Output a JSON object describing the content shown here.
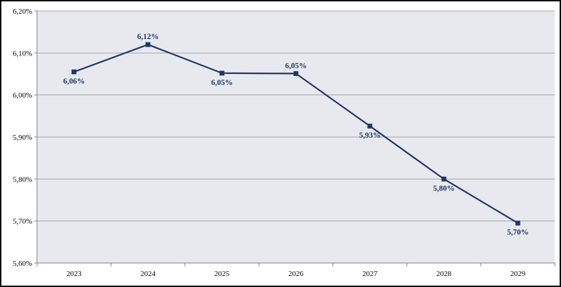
{
  "chart_data": {
    "type": "line",
    "title": "",
    "xlabel": "",
    "ylabel": "",
    "categories": [
      "2023",
      "2024",
      "2025",
      "2026",
      "2027",
      "2028",
      "2029"
    ],
    "series": [
      {
        "values": [
          6.055,
          6.12,
          6.052,
          6.051,
          5.926,
          5.8,
          5.695
        ],
        "labels": [
          "6,06%",
          "6,12%",
          "6,05%",
          "6,05%",
          "5,93%",
          "5,80%",
          "5,70%"
        ],
        "label_positions": [
          "below",
          "above",
          "below",
          "above",
          "below",
          "below",
          "below"
        ],
        "color": "#1f3864"
      }
    ],
    "ylim": [
      5.6,
      6.2
    ],
    "yticks": [
      5.6,
      5.7,
      5.8,
      5.9,
      6.0,
      6.1,
      6.2
    ],
    "ytick_labels": [
      "5,60%",
      "5,70%",
      "5,80%",
      "5,90%",
      "6,00%",
      "6,10%",
      "6,20%"
    ],
    "grid": true,
    "legend": "none",
    "plot_background": "#e8e8ef",
    "gridline_color": "#a6a6a6"
  }
}
